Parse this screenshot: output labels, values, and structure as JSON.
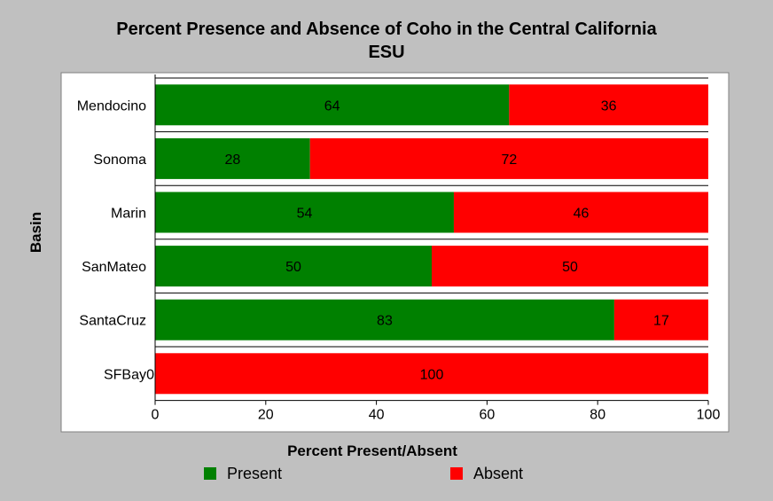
{
  "chart_data": {
    "type": "bar",
    "orientation": "horizontal",
    "stacked": true,
    "title_line1": "Percent Presence and Absence of Coho in the Central California",
    "title_line2": "ESU",
    "xlabel": "Percent Present/Absent",
    "ylabel": "Basin",
    "xlim": [
      0,
      100
    ],
    "xticks": [
      0,
      20,
      40,
      60,
      80,
      100
    ],
    "categories": [
      "Mendocino",
      "Sonoma",
      "Marin",
      "SanMateo",
      "SantaCruz",
      "SFBay"
    ],
    "series": [
      {
        "name": "Present",
        "color": "#008000",
        "values": [
          64,
          28,
          54,
          50,
          83,
          0
        ]
      },
      {
        "name": "Absent",
        "color": "#ff0000",
        "values": [
          36,
          72,
          46,
          50,
          17,
          100
        ]
      }
    ],
    "legend_position": "bottom"
  }
}
